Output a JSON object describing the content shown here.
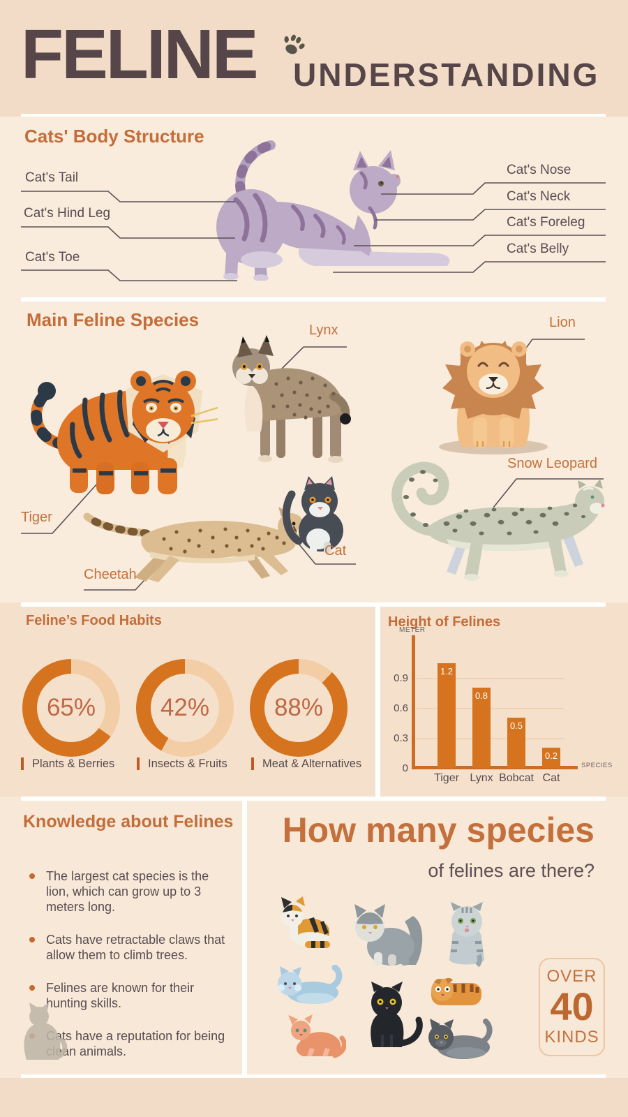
{
  "header": {
    "title": "FELINE",
    "subtitle": "UNDERSTANDING"
  },
  "body_structure": {
    "heading": "Cats' Body Structure",
    "labels_left": [
      "Cat's Tail",
      "Cat's Hind Leg",
      "Cat's Toe"
    ],
    "labels_right": [
      "Cat's Nose",
      "Cat's Neck",
      "Cat's Foreleg",
      "Cat's Belly"
    ]
  },
  "species": {
    "heading": "Main Feline Species",
    "labels": {
      "tiger": "Tiger",
      "lynx": "Lynx",
      "lion": "Lion",
      "cheetah": "Cheetah",
      "cat": "Cat",
      "snow_leopard": "Snow Leopard"
    }
  },
  "food_habits": {
    "heading": "Feline’s Food Habits",
    "items": [
      {
        "value": 65,
        "percent_label": "65%",
        "label": "Plants & Berries"
      },
      {
        "value": 42,
        "percent_label": "42%",
        "label": "Insects & Fruits"
      },
      {
        "value": 88,
        "percent_label": "88%",
        "label": "Meat & Alternatives"
      }
    ]
  },
  "height_chart": {
    "title": "Height of Felines",
    "ylabel": "METER",
    "xlabel": "SPECIES",
    "categories": [
      "Tiger",
      "Lynx",
      "Bobcat",
      "Cat"
    ],
    "values": [
      1.2,
      0.8,
      0.5,
      0.2
    ],
    "value_labels": [
      "1.2",
      "0.8",
      "0.5",
      "0.2"
    ],
    "yticks": [
      0,
      0.3,
      0.6,
      0.9
    ],
    "ytick_labels": [
      "0",
      "0.3",
      "0.6",
      "0.9"
    ]
  },
  "knowledge": {
    "heading": "Knowledge about Felines",
    "bullets": [
      "The largest cat species is the lion, which can grow up to 3 meters long.",
      "Cats have retractable claws that allow them to climb trees.",
      "Felines are known for their hunting skills.",
      "Cats have a reputation for being clean animals."
    ]
  },
  "species_count": {
    "heading_line1": "How many species",
    "heading_line2": "of felines are there?",
    "badge": {
      "over": "OVER",
      "number": "40",
      "kinds": "KINDS"
    }
  },
  "colors": {
    "accent_orange": "#c26d3a",
    "chart_orange": "#d5731f",
    "donut_track": "#f2cda6",
    "title_dark": "#564649",
    "text_dark": "#584c52"
  },
  "chart_data": [
    {
      "type": "pie",
      "variant": "donut",
      "title": "Feline’s Food Habits",
      "donuts": [
        {
          "label": "Plants & Berries",
          "percent": 65
        },
        {
          "label": "Insects & Fruits",
          "percent": 42
        },
        {
          "label": "Meat & Alternatives",
          "percent": 88
        }
      ],
      "fill_color": "#d5731f",
      "track_color": "#f2cda6"
    },
    {
      "type": "bar",
      "title": "Height of Felines",
      "xlabel": "SPECIES",
      "ylabel": "METER",
      "categories": [
        "Tiger",
        "Lynx",
        "Bobcat",
        "Cat"
      ],
      "values": [
        1.2,
        0.8,
        0.5,
        0.2
      ],
      "ylim": [
        0,
        1.2
      ],
      "yticks": [
        0,
        0.3,
        0.6,
        0.9
      ],
      "grid": true,
      "legend": false,
      "bar_color": "#d5731f",
      "value_labels_inside_bars": true
    }
  ]
}
